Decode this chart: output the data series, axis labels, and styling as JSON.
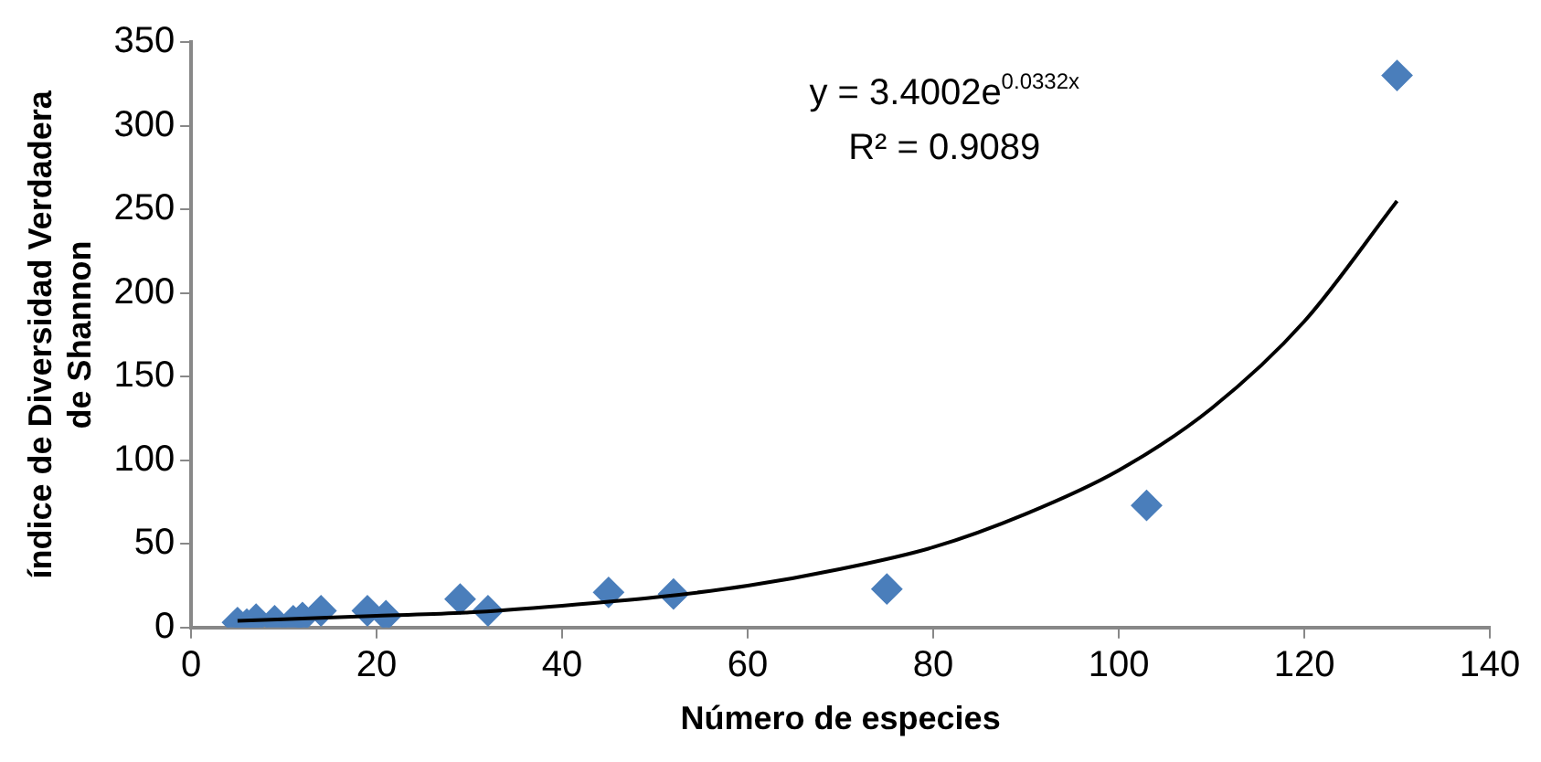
{
  "chart_data": {
    "type": "scatter",
    "xlabel": "Número de especies",
    "ylabel": "índice de Diversidad Verdadera de Shannon",
    "x": [
      5,
      6,
      7,
      9,
      11,
      12,
      14,
      19,
      21,
      29,
      32,
      45,
      52,
      75,
      103,
      130
    ],
    "series": [
      {
        "color": "#4a7ebb",
        "marker": "diamond",
        "values": [
          3,
          2,
          5,
          4,
          4,
          6,
          10,
          10,
          7,
          17,
          10,
          21,
          20,
          23,
          73,
          330
        ]
      },
      {
        "type": "line",
        "color": "#000000",
        "marker": "none",
        "x": [
          5,
          10,
          20,
          30,
          40,
          50,
          60,
          70,
          80,
          90,
          100,
          110,
          120,
          130
        ],
        "values": [
          4,
          5,
          7,
          9,
          13,
          18,
          25,
          35,
          48,
          68,
          94,
          131,
          183,
          255
        ]
      }
    ],
    "xlim": [
      0,
      140
    ],
    "xticks": [
      0,
      20,
      40,
      60,
      80,
      100,
      120,
      140
    ],
    "ylim": [
      0,
      350
    ],
    "yticks": [
      0,
      50,
      100,
      150,
      200,
      250,
      300,
      350
    ],
    "grid": false,
    "legend": false,
    "annotations": [
      "y = 3.4002e$^{0.0332x}$",
      "R² = 0.9089"
    ]
  }
}
